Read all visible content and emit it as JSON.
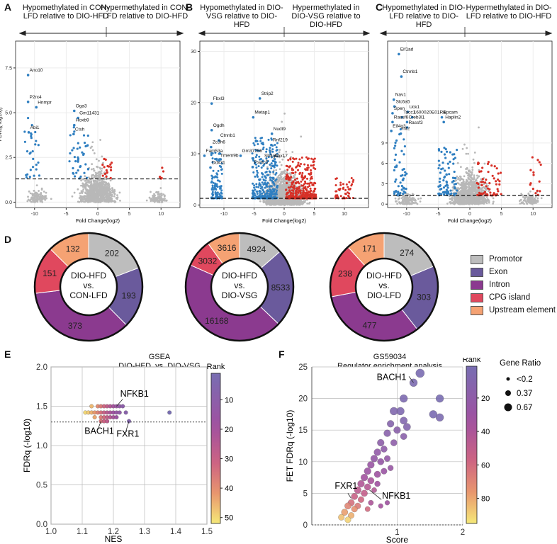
{
  "panels": {
    "A": {
      "letter": "A",
      "left_header": "Hypomethylated in CON-LFD relative to DIO-HFD",
      "right_header": "Hypermethylated in CON-LFD relative to DIO-HFD"
    },
    "B": {
      "letter": "B",
      "left_header": "Hypomethylated in DIO-VSG relative to DIO-HFD",
      "right_header": "Hypermethylated in DIO-VSG relative to DIO-HFD"
    },
    "C": {
      "letter": "C",
      "left_header": "Hypomethylated in DIO-LFD relative to DIO-HFD",
      "right_header": "Hypermethylated in DIO-LFD relative to DIO-HFD"
    },
    "D": {
      "letter": "D"
    },
    "E": {
      "letter": "E",
      "title_line1": "GSEA",
      "title_line2": "DIO-HFD_vs_DIO-VSG",
      "colorbar_title": "Rank"
    },
    "F": {
      "letter": "F",
      "title_line1": "GS59034",
      "title_line2": "Regulator enrichment analysis",
      "colorbar_title": "Rank",
      "size_legend_title": "Gene Ratio",
      "size_legend": [
        "<0.2",
        "0.37",
        "0.67"
      ]
    }
  },
  "donut_legend": [
    {
      "label": "Promotor",
      "color": "#bdbdbd"
    },
    {
      "label": "Exon",
      "color": "#6a5a9c"
    },
    {
      "label": "Intron",
      "color": "#8b3a8f"
    },
    {
      "label": "CPG island",
      "color": "#e0485e"
    },
    {
      "label": "Upstream element",
      "color": "#f5a273"
    }
  ],
  "chart_data": [
    {
      "type": "scatter",
      "panel": "A",
      "title": "",
      "xlabel": "Fold Change(log2)",
      "ylabel": "FDRq(-log10))",
      "xlim": [
        -13,
        13
      ],
      "ylim": [
        -0.3,
        9
      ],
      "xticks": [
        -10,
        -5,
        0,
        5,
        10
      ],
      "yticks": [
        0.0,
        2.5,
        5.0,
        7.5
      ],
      "ytick_labels": [
        "0.0",
        "2.5",
        "5.0",
        "7.5"
      ],
      "threshold": 1.3,
      "labels": [
        {
          "text": "Ano10",
          "x": -10.8,
          "y": 7.3
        },
        {
          "text": "P2rx4",
          "x": -10.8,
          "y": 5.8
        },
        {
          "text": "Hnmpr",
          "x": -9.5,
          "y": 5.5
        },
        {
          "text": "Abi1",
          "x": -10.7,
          "y": 4.1
        },
        {
          "text": "Oga3",
          "x": -3.5,
          "y": 5.3
        },
        {
          "text": "Gm11431",
          "x": -2.9,
          "y": 4.9
        },
        {
          "text": "Hoxb9",
          "x": -3.5,
          "y": 4.5
        },
        {
          "text": "Ctsh",
          "x": -3.6,
          "y": 4.0
        }
      ]
    },
    {
      "type": "scatter",
      "panel": "B",
      "title": "",
      "xlabel": "Fold Change(log2)",
      "ylabel": "",
      "xlim": [
        -14,
        14
      ],
      "ylim": [
        -0.5,
        32
      ],
      "xticks": [
        -10,
        -5,
        0,
        5,
        10
      ],
      "yticks": [
        0,
        10,
        20,
        30
      ],
      "ytick_labels": [
        "0",
        "10",
        "20",
        "30"
      ],
      "threshold": 1.3,
      "labels": [
        {
          "text": "Fbxl3",
          "x": -11.8,
          "y": 20.5
        },
        {
          "text": "Strip2",
          "x": -3.8,
          "y": 21.5
        },
        {
          "text": "Metap1",
          "x": -4.9,
          "y": 17.8
        },
        {
          "text": "Ogdh",
          "x": -11.8,
          "y": 15.3
        },
        {
          "text": "Ctnnb1",
          "x": -10.6,
          "y": 13.3
        },
        {
          "text": "Nudt9",
          "x": -1.8,
          "y": 14.6
        },
        {
          "text": "Zc3h6",
          "x": -11.9,
          "y": 12.0
        },
        {
          "text": "Rnf219",
          "x": -1.9,
          "y": 12.4
        },
        {
          "text": "Fam53a",
          "x": -13.0,
          "y": 10.3
        },
        {
          "text": "Gm37256",
          "x": -7.0,
          "y": 10.3
        },
        {
          "text": "Tmem9b",
          "x": -10.6,
          "y": 9.4
        },
        {
          "text": "Sh3gl2",
          "x": -3.3,
          "y": 9.3
        },
        {
          "text": "Sox17",
          "x": -1.6,
          "y": 9.3
        },
        {
          "text": "Ddx31",
          "x": -12.0,
          "y": 8.0
        },
        {
          "text": "Psmc5",
          "x": -5.0,
          "y": 8.1
        }
      ]
    },
    {
      "type": "scatter",
      "panel": "C",
      "title": "",
      "xlabel": "Fold Change(log2)",
      "ylabel": "",
      "xlim": [
        -13,
        13
      ],
      "ylim": [
        -0.5,
        24
      ],
      "xticks": [
        -10,
        -5,
        0,
        5,
        10
      ],
      "yticks": [
        0,
        3,
        6,
        9
      ],
      "ytick_labels": [
        "0",
        "3",
        "6",
        "9"
      ],
      "threshold": 1.3,
      "labels": [
        {
          "text": "Eif1ad",
          "x": -11.0,
          "y": 22.6
        },
        {
          "text": "Ctnnb1",
          "x": -10.6,
          "y": 19.3
        },
        {
          "text": "Nav1",
          "x": -11.8,
          "y": 15.9
        },
        {
          "text": "Slc6a5",
          "x": -11.7,
          "y": 14.9
        },
        {
          "text": "Uck1",
          "x": -9.6,
          "y": 14.1
        },
        {
          "text": "Spen",
          "x": -12.0,
          "y": 13.9
        },
        {
          "text": "Tacc1",
          "x": -10.5,
          "y": 13.3
        },
        {
          "text": "1600020E01Rik",
          "x": -8.9,
          "y": 13.3
        },
        {
          "text": "Epcam",
          "x": -4.2,
          "y": 13.3
        },
        {
          "text": "Rassf6",
          "x": -12.0,
          "y": 12.6
        },
        {
          "text": "Creb3l1",
          "x": -9.7,
          "y": 12.6
        },
        {
          "text": "Haplin2",
          "x": -3.9,
          "y": 12.6
        },
        {
          "text": "Rassf3",
          "x": -9.7,
          "y": 11.8
        },
        {
          "text": "Eif4g3",
          "x": -12.2,
          "y": 11.3
        },
        {
          "text": "Inf2",
          "x": -10.7,
          "y": 10.9
        }
      ]
    },
    {
      "type": "pie",
      "panel": "D",
      "name": "donut-1",
      "center_label": [
        "DIO-HFD",
        "vs.",
        "CON-LFD"
      ],
      "categories": [
        "Promotor",
        "Exon",
        "Intron",
        "CPG island",
        "Upstream element"
      ],
      "values": [
        202,
        193,
        373,
        151,
        132
      ]
    },
    {
      "type": "pie",
      "panel": "D",
      "name": "donut-2",
      "center_label": [
        "DIO-HFD",
        "vs.",
        "DIO-VSG"
      ],
      "categories": [
        "Promotor",
        "Exon",
        "Intron",
        "CPG island",
        "Upstream element"
      ],
      "values": [
        4924,
        8533,
        16168,
        3032,
        3616
      ]
    },
    {
      "type": "pie",
      "panel": "D",
      "name": "donut-3",
      "center_label": [
        "DIO-HFD",
        "vs.",
        "DIO-LFD"
      ],
      "categories": [
        "Promotor",
        "Exon",
        "Intron",
        "CPG island",
        "Upstream element"
      ],
      "values": [
        274,
        303,
        477,
        238,
        171
      ]
    },
    {
      "type": "scatter",
      "panel": "E",
      "title": "GSEA DIO-HFD_vs_DIO-VSG",
      "xlabel": "NES",
      "ylabel": "FDRq (-log10)",
      "xlim": [
        1.0,
        1.5
      ],
      "ylim": [
        0.0,
        2.0
      ],
      "xticks": [
        1.0,
        1.1,
        1.2,
        1.3,
        1.4,
        1.5
      ],
      "xtick_labels": [
        "1.0",
        "1.1",
        "1.2",
        "1.3",
        "1.4",
        "1.5"
      ],
      "yticks": [
        0.0,
        0.5,
        1.0,
        1.5,
        2.0
      ],
      "ytick_labels": [
        "0.0",
        "0.5",
        "1.0",
        "1.5",
        "2.0"
      ],
      "threshold": 1.3,
      "colorbar": {
        "min": 1,
        "max": 52,
        "ticks": [
          10,
          20,
          30,
          40,
          50
        ]
      },
      "points": [
        {
          "x": 1.11,
          "y": 1.42,
          "r": 50
        },
        {
          "x": 1.12,
          "y": 1.42,
          "r": 48
        },
        {
          "x": 1.13,
          "y": 1.42,
          "r": 45
        },
        {
          "x": 1.14,
          "y": 1.42,
          "r": 42
        },
        {
          "x": 1.15,
          "y": 1.42,
          "r": 38
        },
        {
          "x": 1.16,
          "y": 1.42,
          "r": 34
        },
        {
          "x": 1.17,
          "y": 1.42,
          "r": 30
        },
        {
          "x": 1.18,
          "y": 1.42,
          "r": 26
        },
        {
          "x": 1.19,
          "y": 1.42,
          "r": 22
        },
        {
          "x": 1.2,
          "y": 1.42,
          "r": 18
        },
        {
          "x": 1.21,
          "y": 1.42,
          "r": 15
        },
        {
          "x": 1.22,
          "y": 1.42,
          "r": 12
        },
        {
          "x": 1.24,
          "y": 1.42,
          "r": 8
        },
        {
          "x": 1.38,
          "y": 1.42,
          "r": 1
        },
        {
          "x": 1.13,
          "y": 1.5,
          "r": 46
        },
        {
          "x": 1.15,
          "y": 1.5,
          "r": 40
        },
        {
          "x": 1.16,
          "y": 1.5,
          "r": 36
        },
        {
          "x": 1.17,
          "y": 1.5,
          "r": 32
        },
        {
          "x": 1.18,
          "y": 1.5,
          "r": 28
        },
        {
          "x": 1.19,
          "y": 1.5,
          "r": 24
        },
        {
          "x": 1.2,
          "y": 1.5,
          "r": 20
        },
        {
          "x": 1.21,
          "y": 1.5,
          "r": 16
        },
        {
          "x": 1.22,
          "y": 1.5,
          "r": 13
        },
        {
          "x": 1.23,
          "y": 1.5,
          "r": 10
        },
        {
          "x": 1.14,
          "y": 1.36,
          "r": 44
        },
        {
          "x": 1.16,
          "y": 1.36,
          "r": 37
        },
        {
          "x": 1.17,
          "y": 1.36,
          "r": 33
        },
        {
          "x": 1.18,
          "y": 1.36,
          "r": 29
        },
        {
          "x": 1.19,
          "y": 1.36,
          "r": 25
        },
        {
          "x": 1.2,
          "y": 1.36,
          "r": 21
        },
        {
          "x": 1.21,
          "y": 1.36,
          "r": 17
        },
        {
          "x": 1.16,
          "y": 1.31,
          "r": 35
        },
        {
          "x": 1.17,
          "y": 1.31,
          "r": 31
        },
        {
          "x": 1.18,
          "y": 1.31,
          "r": 27
        },
        {
          "x": 1.25,
          "y": 1.31,
          "r": 6
        }
      ],
      "labels": [
        {
          "text": "NFKB1",
          "x": 1.24,
          "y": 1.62
        },
        {
          "text": "BACH1",
          "x": 1.13,
          "y": 1.15
        },
        {
          "text": "FXR1",
          "x": 1.26,
          "y": 1.13
        }
      ]
    },
    {
      "type": "scatter",
      "panel": "F",
      "title": "GS59034 Regulator enrichment analysis",
      "xlabel": "Score",
      "ylabel": "FET FDRq (-log10)",
      "xlim": [
        -0.3,
        2.0
      ],
      "ylim": [
        0,
        25
      ],
      "xticks": [
        1,
        2
      ],
      "xtick_labels": [
        "1",
        "2"
      ],
      "yticks": [
        0,
        5,
        10,
        15,
        20,
        25
      ],
      "ytick_labels": [
        "0",
        "5",
        "10",
        "15",
        "20",
        "25"
      ],
      "threshold": 0,
      "colorbar": {
        "min": 1,
        "max": 95,
        "ticks": [
          20,
          40,
          60,
          80
        ]
      },
      "points": [
        {
          "x": 1.35,
          "y": 24.0,
          "r": 3,
          "g": 0.6
        },
        {
          "x": 1.25,
          "y": 22.5,
          "r": 4,
          "g": 0.5
        },
        {
          "x": 1.65,
          "y": 20.0,
          "r": 2,
          "g": 0.5
        },
        {
          "x": 1.1,
          "y": 20.0,
          "r": 5,
          "g": 0.5
        },
        {
          "x": 1.05,
          "y": 18.0,
          "r": 6,
          "g": 0.5
        },
        {
          "x": 0.95,
          "y": 18.0,
          "r": 8,
          "g": 0.5
        },
        {
          "x": 1.55,
          "y": 17.5,
          "r": 3,
          "g": 0.5
        },
        {
          "x": 1.65,
          "y": 17.0,
          "r": 4,
          "g": 0.5
        },
        {
          "x": 1.1,
          "y": 16.5,
          "r": 9,
          "g": 0.45
        },
        {
          "x": 1.15,
          "y": 15.5,
          "r": 10,
          "g": 0.45
        },
        {
          "x": 0.9,
          "y": 16.0,
          "r": 12,
          "g": 0.4
        },
        {
          "x": 0.85,
          "y": 14.5,
          "r": 14,
          "g": 0.4
        },
        {
          "x": 1.0,
          "y": 15.0,
          "r": 15,
          "g": 0.4
        },
        {
          "x": 1.1,
          "y": 14.0,
          "r": 16,
          "g": 0.35
        },
        {
          "x": 0.75,
          "y": 13.0,
          "r": 18,
          "g": 0.4
        },
        {
          "x": 0.8,
          "y": 12.0,
          "r": 20,
          "g": 0.35
        },
        {
          "x": 0.95,
          "y": 13.0,
          "r": 19,
          "g": 0.35
        },
        {
          "x": 0.7,
          "y": 11.5,
          "r": 22,
          "g": 0.4
        },
        {
          "x": 0.65,
          "y": 10.5,
          "r": 24,
          "g": 0.4
        },
        {
          "x": 0.75,
          "y": 10.0,
          "r": 25,
          "g": 0.35
        },
        {
          "x": 0.85,
          "y": 10.5,
          "r": 23,
          "g": 0.3
        },
        {
          "x": 0.6,
          "y": 9.5,
          "r": 28,
          "g": 0.4
        },
        {
          "x": 0.55,
          "y": 8.5,
          "r": 30,
          "g": 0.4
        },
        {
          "x": 0.7,
          "y": 8.0,
          "r": 32,
          "g": 0.35
        },
        {
          "x": 0.8,
          "y": 8.5,
          "r": 29,
          "g": 0.3
        },
        {
          "x": 0.9,
          "y": 9.0,
          "r": 27,
          "g": 0.25
        },
        {
          "x": 0.5,
          "y": 7.5,
          "r": 35,
          "g": 0.4
        },
        {
          "x": 0.6,
          "y": 7.0,
          "r": 38,
          "g": 0.35
        },
        {
          "x": 0.45,
          "y": 6.5,
          "r": 42,
          "g": 0.4
        },
        {
          "x": 0.55,
          "y": 6.0,
          "r": 45,
          "g": 0.35
        },
        {
          "x": 0.4,
          "y": 5.5,
          "r": 48,
          "g": 0.4
        },
        {
          "x": 0.5,
          "y": 5.0,
          "r": 52,
          "g": 0.35
        },
        {
          "x": 0.35,
          "y": 4.5,
          "r": 55,
          "g": 0.35
        },
        {
          "x": 0.45,
          "y": 4.0,
          "r": 58,
          "g": 0.3
        },
        {
          "x": 0.3,
          "y": 3.5,
          "r": 62,
          "g": 0.35
        },
        {
          "x": 0.4,
          "y": 3.0,
          "r": 66,
          "g": 0.3
        },
        {
          "x": 0.25,
          "y": 3.0,
          "r": 70,
          "g": 0.35
        },
        {
          "x": 0.35,
          "y": 2.5,
          "r": 74,
          "g": 0.3
        },
        {
          "x": 0.2,
          "y": 2.0,
          "r": 78,
          "g": 0.35
        },
        {
          "x": 0.3,
          "y": 1.5,
          "r": 82,
          "g": 0.3
        },
        {
          "x": 0.15,
          "y": 1.2,
          "r": 86,
          "g": 0.3
        },
        {
          "x": 0.25,
          "y": 0.8,
          "r": 90,
          "g": 0.3
        },
        {
          "x": 0.6,
          "y": 3.5,
          "r": 40,
          "g": 0.2
        },
        {
          "x": 0.75,
          "y": 3.0,
          "r": 36,
          "g": 0.15
        },
        {
          "x": 0.85,
          "y": 3.5,
          "r": 33,
          "g": 0.15
        },
        {
          "x": 0.55,
          "y": 2.5,
          "r": 60,
          "g": 0.2
        },
        {
          "x": 0.65,
          "y": 5.5,
          "r": 44,
          "g": 0.2
        },
        {
          "x": 0.7,
          "y": 6.5,
          "r": 34,
          "g": 0.25
        }
      ],
      "labels": [
        {
          "text": "BACH1",
          "x": 1.1,
          "y": 22.5
        },
        {
          "text": "FXR1",
          "x": 0.05,
          "y": 5.7
        },
        {
          "text": "NFKB1",
          "x": 0.77,
          "y": 4.4
        }
      ]
    }
  ]
}
